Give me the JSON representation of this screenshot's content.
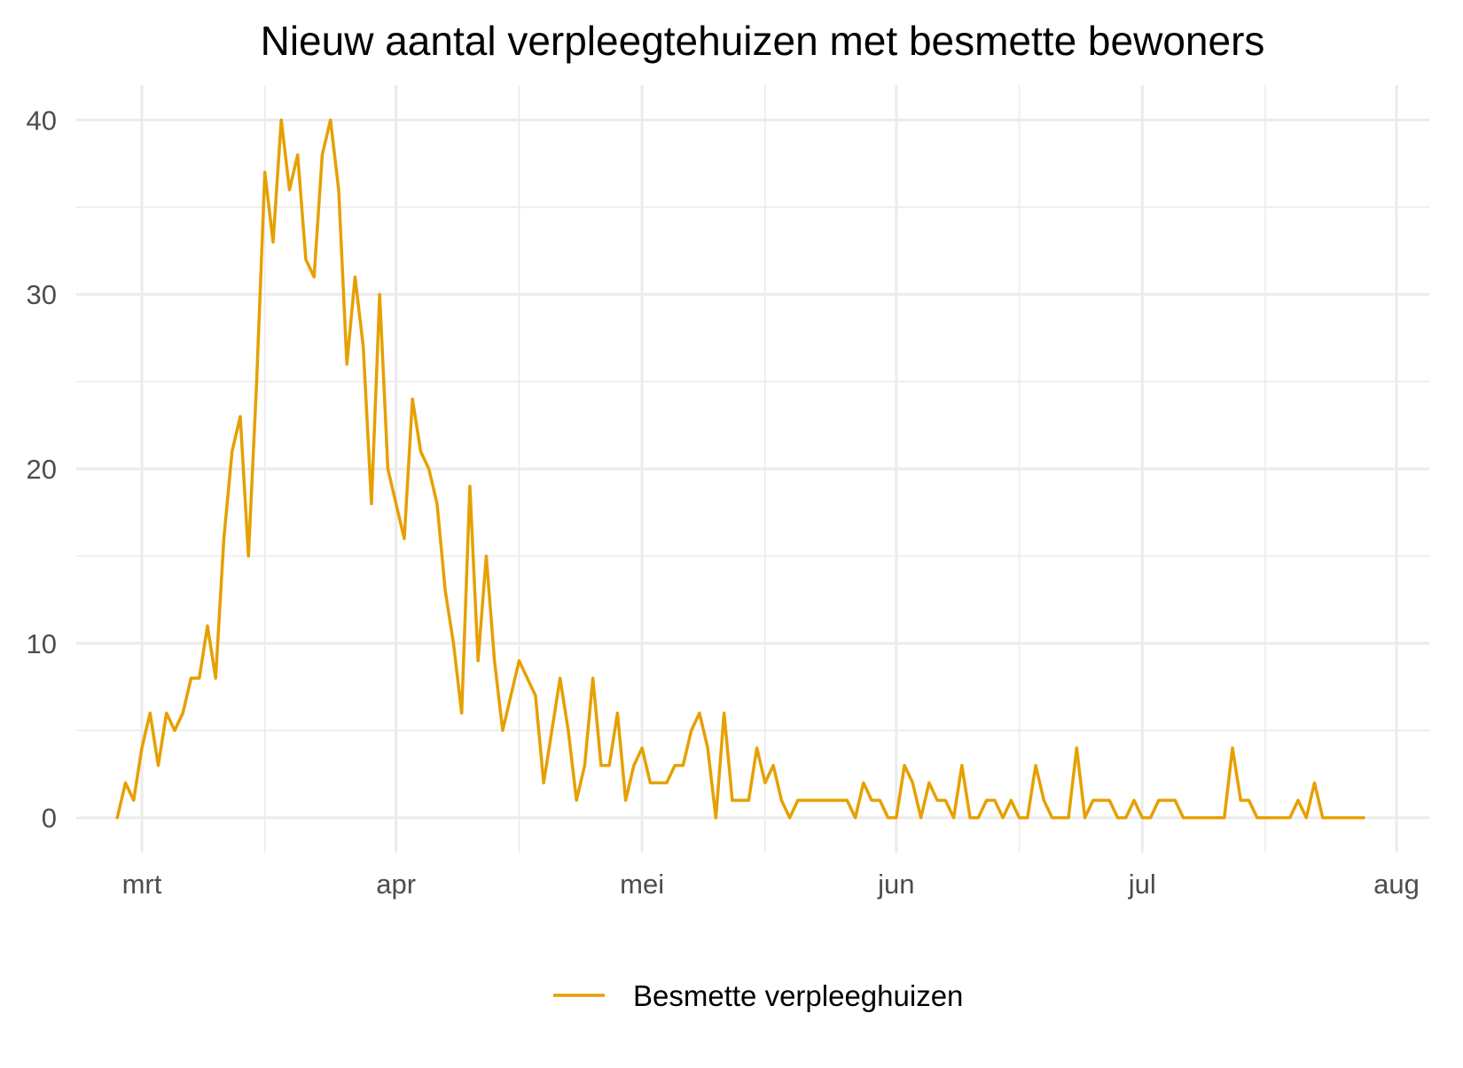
{
  "chart_data": {
    "type": "line",
    "title": "Nieuw aantal verpleegtehuizen met besmette bewoners",
    "xlabel": "",
    "ylabel": "",
    "x_start": "2020-02-27",
    "xlim": [
      "2020-02-22",
      "2020-08-05"
    ],
    "ylim": [
      -2,
      42
    ],
    "x_ticks": [
      {
        "date": "2020-03-01",
        "label": "mrt"
      },
      {
        "date": "2020-04-01",
        "label": "apr"
      },
      {
        "date": "2020-05-01",
        "label": "mei"
      },
      {
        "date": "2020-06-01",
        "label": "jun"
      },
      {
        "date": "2020-07-01",
        "label": "jul"
      },
      {
        "date": "2020-08-01",
        "label": "aug"
      }
    ],
    "x_minor_ticks": [
      "2020-03-16",
      "2020-04-16",
      "2020-05-16",
      "2020-06-16",
      "2020-07-16"
    ],
    "y_ticks": [
      {
        "value": 0,
        "label": "0"
      },
      {
        "value": 10,
        "label": "10"
      },
      {
        "value": 20,
        "label": "20"
      },
      {
        "value": 30,
        "label": "30"
      },
      {
        "value": 40,
        "label": "40"
      }
    ],
    "y_minor_ticks": [
      5,
      15,
      25,
      35
    ],
    "grid": true,
    "legend_position": "bottom",
    "series": [
      {
        "name": "Besmette verpleeghuizen",
        "color": "#E6A000",
        "values": [
          0,
          2,
          1,
          4,
          6,
          3,
          6,
          5,
          6,
          8,
          8,
          11,
          8,
          16,
          21,
          23,
          15,
          25,
          37,
          33,
          40,
          36,
          38,
          32,
          31,
          38,
          40,
          36,
          26,
          31,
          27,
          18,
          30,
          20,
          18,
          16,
          24,
          21,
          20,
          18,
          13,
          10,
          6,
          19,
          9,
          15,
          9,
          5,
          7,
          9,
          8,
          7,
          2,
          5,
          8,
          5,
          1,
          3,
          8,
          3,
          3,
          6,
          1,
          3,
          4,
          2,
          2,
          2,
          3,
          3,
          5,
          6,
          4,
          0,
          6,
          1,
          1,
          1,
          4,
          2,
          3,
          1,
          0,
          1,
          1,
          1,
          1,
          1,
          1,
          1,
          0,
          2,
          1,
          1,
          0,
          0,
          3,
          2,
          0,
          2,
          1,
          1,
          0,
          3,
          0,
          0,
          1,
          1,
          0,
          1,
          0,
          0,
          3,
          1,
          0,
          0,
          0,
          4,
          0,
          1,
          1,
          1,
          0,
          0,
          1,
          0,
          0,
          1,
          1,
          1,
          0,
          0,
          0,
          0,
          0,
          0,
          4,
          1,
          1,
          0,
          0,
          0,
          0,
          0,
          1,
          0,
          2,
          0,
          0,
          0,
          0,
          0,
          0
        ]
      }
    ]
  }
}
